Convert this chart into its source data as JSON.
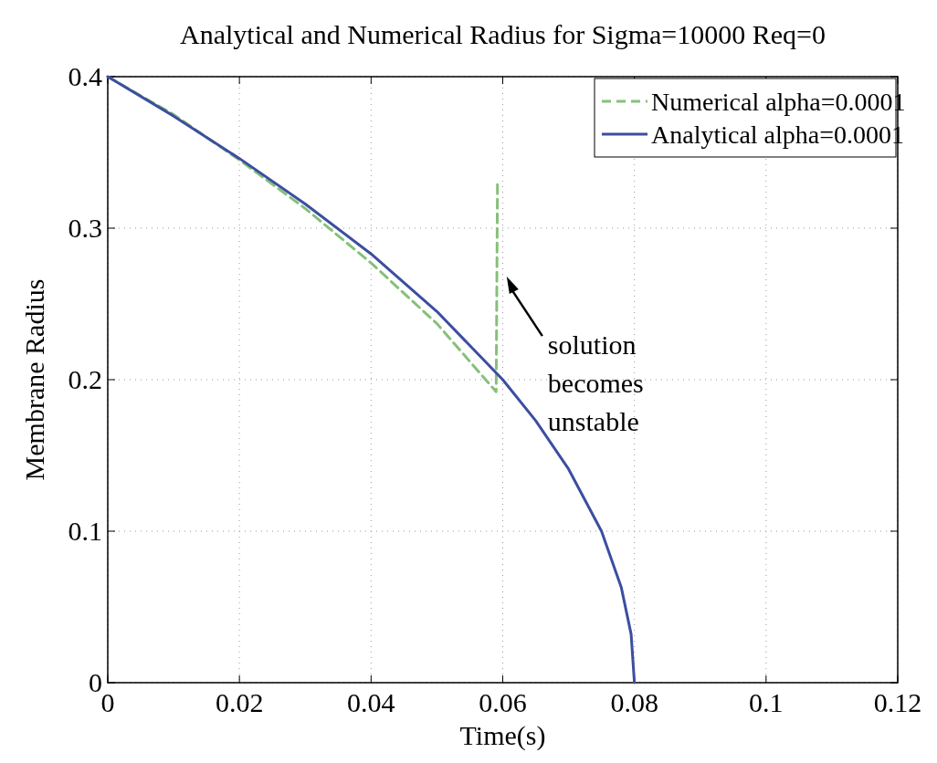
{
  "chart_data": {
    "type": "line",
    "title": "Analytical and Numerical Radius for Sigma=10000 Req=0",
    "xlabel": "Time(s)",
    "ylabel": "Membrane Radius",
    "xlim": [
      0,
      0.12
    ],
    "xticks": [
      0,
      0.02,
      0.04,
      0.06,
      0.08,
      0.1,
      0.12
    ],
    "ylim": [
      0,
      0.4
    ],
    "yticks": [
      0,
      0.1,
      0.2,
      0.3,
      0.4
    ],
    "grid": true,
    "legend": "top right",
    "series": [
      {
        "name": "Numerical alpha=0.0001",
        "color": "#86c07a",
        "line_style": "dashed",
        "x": [
          0,
          0.01,
          0.02,
          0.03,
          0.04,
          0.05,
          0.059,
          0.0592
        ],
        "values": [
          0.4,
          0.375,
          0.345,
          0.313,
          0.277,
          0.237,
          0.192,
          0.33
        ]
      },
      {
        "name": "Analytical alpha=0.0001",
        "color": "#3b4ea0",
        "line_style": "solid",
        "x": [
          0,
          0.01,
          0.02,
          0.03,
          0.04,
          0.05,
          0.06,
          0.065,
          0.07,
          0.075,
          0.078,
          0.0795,
          0.08
        ],
        "values": [
          0.4,
          0.374,
          0.346,
          0.316,
          0.283,
          0.245,
          0.2,
          0.173,
          0.141,
          0.1,
          0.063,
          0.032,
          0
        ]
      }
    ],
    "annotations": [
      "solution becomes unstable"
    ]
  }
}
